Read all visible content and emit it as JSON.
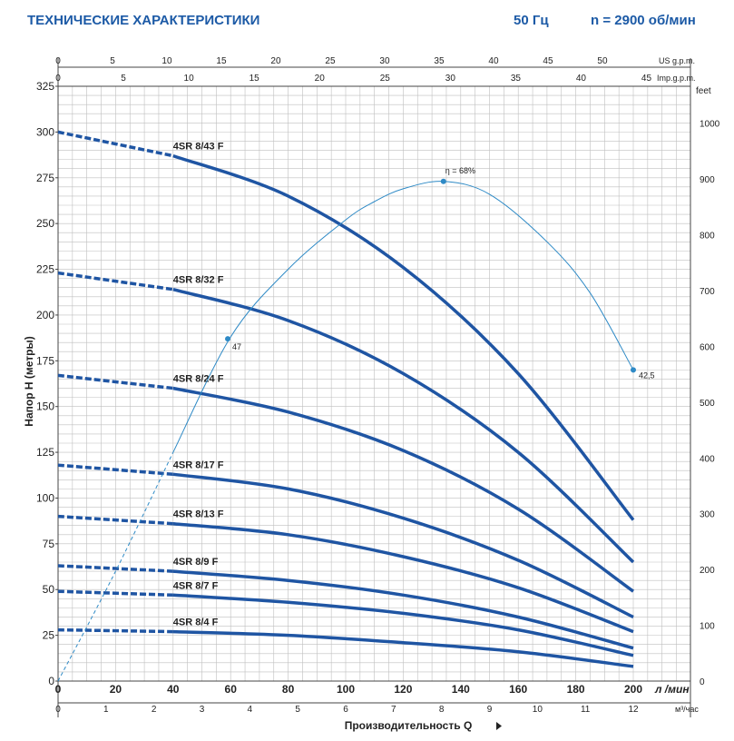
{
  "header": {
    "title": "ТЕХНИЧЕСКИЕ ХАРАКТЕРИСТИКИ",
    "frequency": "50 Гц",
    "speed": "n = 2900 об/мин"
  },
  "chart_data": {
    "type": "line",
    "xlabel": "Производительность  Q",
    "ylabel": "Напор  H  (метры)",
    "x_unit": "л /мин",
    "x_unit_m3": "м³/час",
    "y_unit_right": "feet",
    "x_unit_us": "US g.p.m.",
    "x_unit_imp": "Imp.g.p.m.",
    "xlim": [
      0,
      200
    ],
    "ylim": [
      0,
      325
    ],
    "feet_lim": [
      0,
      1066
    ],
    "x_ticks": [
      "0",
      "20",
      "40",
      "60",
      "80",
      "100",
      "120",
      "140",
      "160",
      "180",
      "200"
    ],
    "m3_ticks": [
      "0",
      "1",
      "2",
      "3",
      "4",
      "5",
      "6",
      "7",
      "8",
      "9",
      "10",
      "11",
      "12"
    ],
    "us_ticks": [
      "0",
      "5",
      "10",
      "15",
      "20",
      "25",
      "30",
      "35",
      "40",
      "45",
      "50"
    ],
    "imp_ticks": [
      "0",
      "5",
      "10",
      "15",
      "20",
      "25",
      "30",
      "35",
      "40",
      "45"
    ],
    "y_ticks": [
      "0",
      "25",
      "50",
      "75",
      "100",
      "125",
      "150",
      "175",
      "200",
      "225",
      "250",
      "275",
      "300",
      "325"
    ],
    "feet_ticks": [
      "0",
      "100",
      "200",
      "300",
      "400",
      "500",
      "600",
      "700",
      "800",
      "900",
      "1000"
    ],
    "dashed_until_x": 40,
    "series": [
      {
        "name": "4SR 8/43 F",
        "x": [
          0,
          40,
          80,
          120,
          160,
          200
        ],
        "y": [
          300,
          287,
          265,
          226,
          168,
          88
        ]
      },
      {
        "name": "4SR 8/32 F",
        "x": [
          0,
          40,
          80,
          120,
          160,
          200
        ],
        "y": [
          223,
          214,
          197,
          168,
          125,
          65
        ]
      },
      {
        "name": "4SR 8/24 F",
        "x": [
          0,
          40,
          80,
          120,
          160,
          200
        ],
        "y": [
          167,
          160,
          147,
          126,
          94,
          49
        ]
      },
      {
        "name": "4SR 8/17 F",
        "x": [
          0,
          40,
          80,
          120,
          160,
          200
        ],
        "y": [
          118,
          113,
          105,
          89,
          66,
          35
        ]
      },
      {
        "name": "4SR 8/13 F",
        "x": [
          0,
          40,
          80,
          120,
          160,
          200
        ],
        "y": [
          90,
          86,
          80,
          68,
          51,
          27
        ]
      },
      {
        "name": "4SR 8/9 F",
        "x": [
          0,
          40,
          80,
          120,
          160,
          200
        ],
        "y": [
          63,
          60,
          55,
          47,
          35,
          18
        ]
      },
      {
        "name": "4SR 8/7 F",
        "x": [
          0,
          40,
          80,
          120,
          160,
          200
        ],
        "y": [
          49,
          47,
          43,
          37,
          28,
          14
        ]
      },
      {
        "name": "4SR 8/4 F",
        "x": [
          0,
          40,
          80,
          120,
          160,
          200
        ],
        "y": [
          28,
          27,
          25,
          21,
          16,
          8
        ]
      }
    ],
    "efficiency": {
      "x": [
        0,
        20,
        40,
        60,
        80,
        100,
        110,
        120,
        134,
        150,
        170,
        185,
        200
      ],
      "y": [
        0,
        60,
        125,
        188,
        225,
        252,
        262,
        269,
        273,
        266,
        240,
        212,
        170
      ],
      "dashed_until_x": 40,
      "markers": [
        {
          "x": 59,
          "y": 187,
          "label": "47"
        },
        {
          "x": 134,
          "y": 273,
          "label": "η = 68%"
        },
        {
          "x": 200,
          "y": 170,
          "label": "42,5"
        }
      ]
    }
  }
}
